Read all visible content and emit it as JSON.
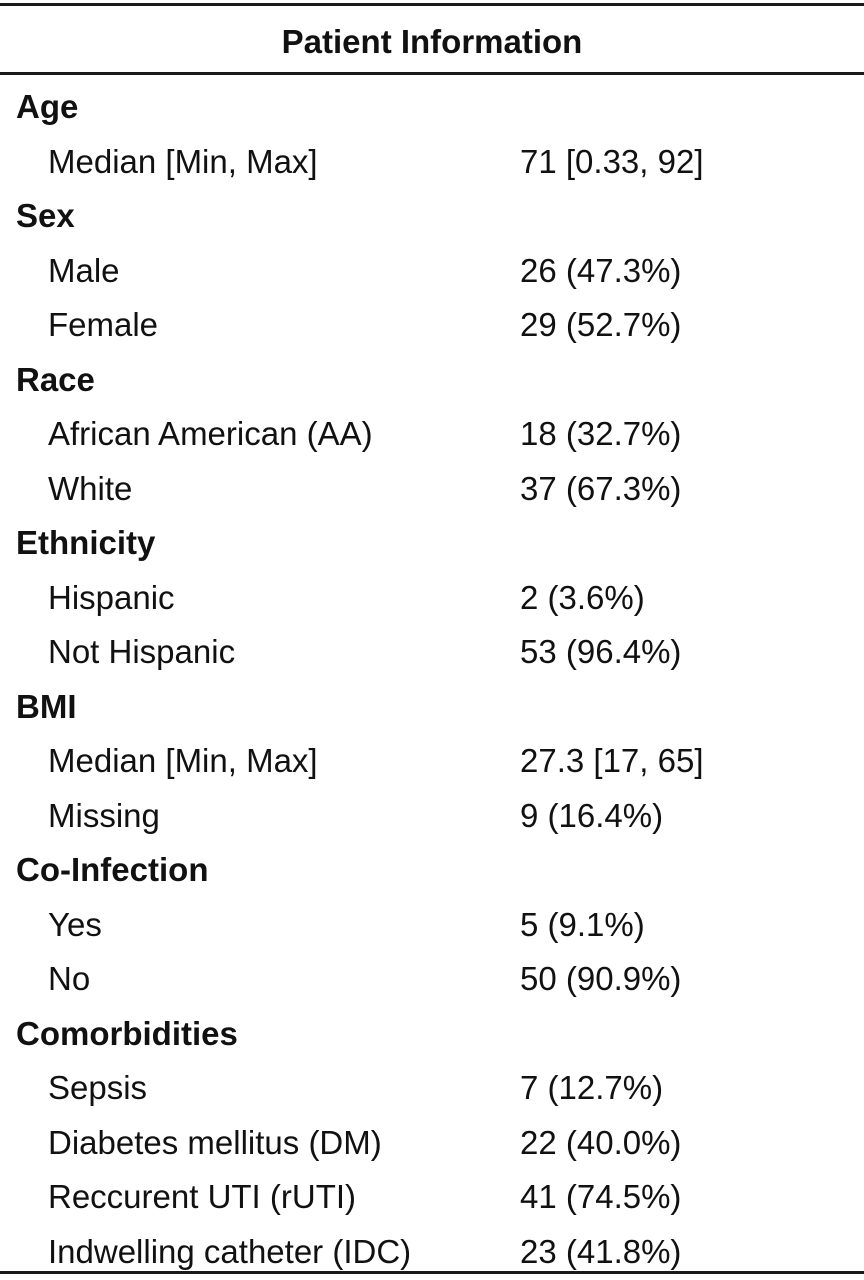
{
  "table": {
    "title": "Patient Information",
    "rows": [
      {
        "type": "category",
        "label": "Age"
      },
      {
        "type": "item",
        "label": "Median [Min, Max]",
        "value": "71 [0.33, 92]"
      },
      {
        "type": "category",
        "label": "Sex"
      },
      {
        "type": "item",
        "label": "Male",
        "value": "26 (47.3%)"
      },
      {
        "type": "item",
        "label": "Female",
        "value": "29 (52.7%)"
      },
      {
        "type": "category",
        "label": "Race"
      },
      {
        "type": "item",
        "label": "African American (AA)",
        "value": "18 (32.7%)"
      },
      {
        "type": "item",
        "label": "White",
        "value": "37 (67.3%)"
      },
      {
        "type": "category",
        "label": "Ethnicity"
      },
      {
        "type": "item",
        "label": "Hispanic",
        "value": "2 (3.6%)"
      },
      {
        "type": "item",
        "label": "Not Hispanic",
        "value": "53 (96.4%)"
      },
      {
        "type": "category",
        "label": "BMI"
      },
      {
        "type": "item",
        "label": "Median [Min, Max]",
        "value": "27.3 [17, 65]"
      },
      {
        "type": "item",
        "label": "Missing",
        "value": "9 (16.4%)"
      },
      {
        "type": "category",
        "label": "Co-Infection"
      },
      {
        "type": "item",
        "label": "Yes",
        "value": "5 (9.1%)"
      },
      {
        "type": "item",
        "label": "No",
        "value": "50 (90.9%)"
      },
      {
        "type": "category",
        "label": "Comorbidities"
      },
      {
        "type": "item",
        "label": "Sepsis",
        "value": "7 (12.7%)"
      },
      {
        "type": "item",
        "label": "Diabetes mellitus (DM)",
        "value": "22 (40.0%)"
      },
      {
        "type": "item",
        "label": "Reccurent UTI (rUTI)",
        "value": "41 (74.5%)"
      },
      {
        "type": "item",
        "label": "Indwelling catheter (IDC)",
        "value": "23 (41.8%)"
      }
    ]
  }
}
